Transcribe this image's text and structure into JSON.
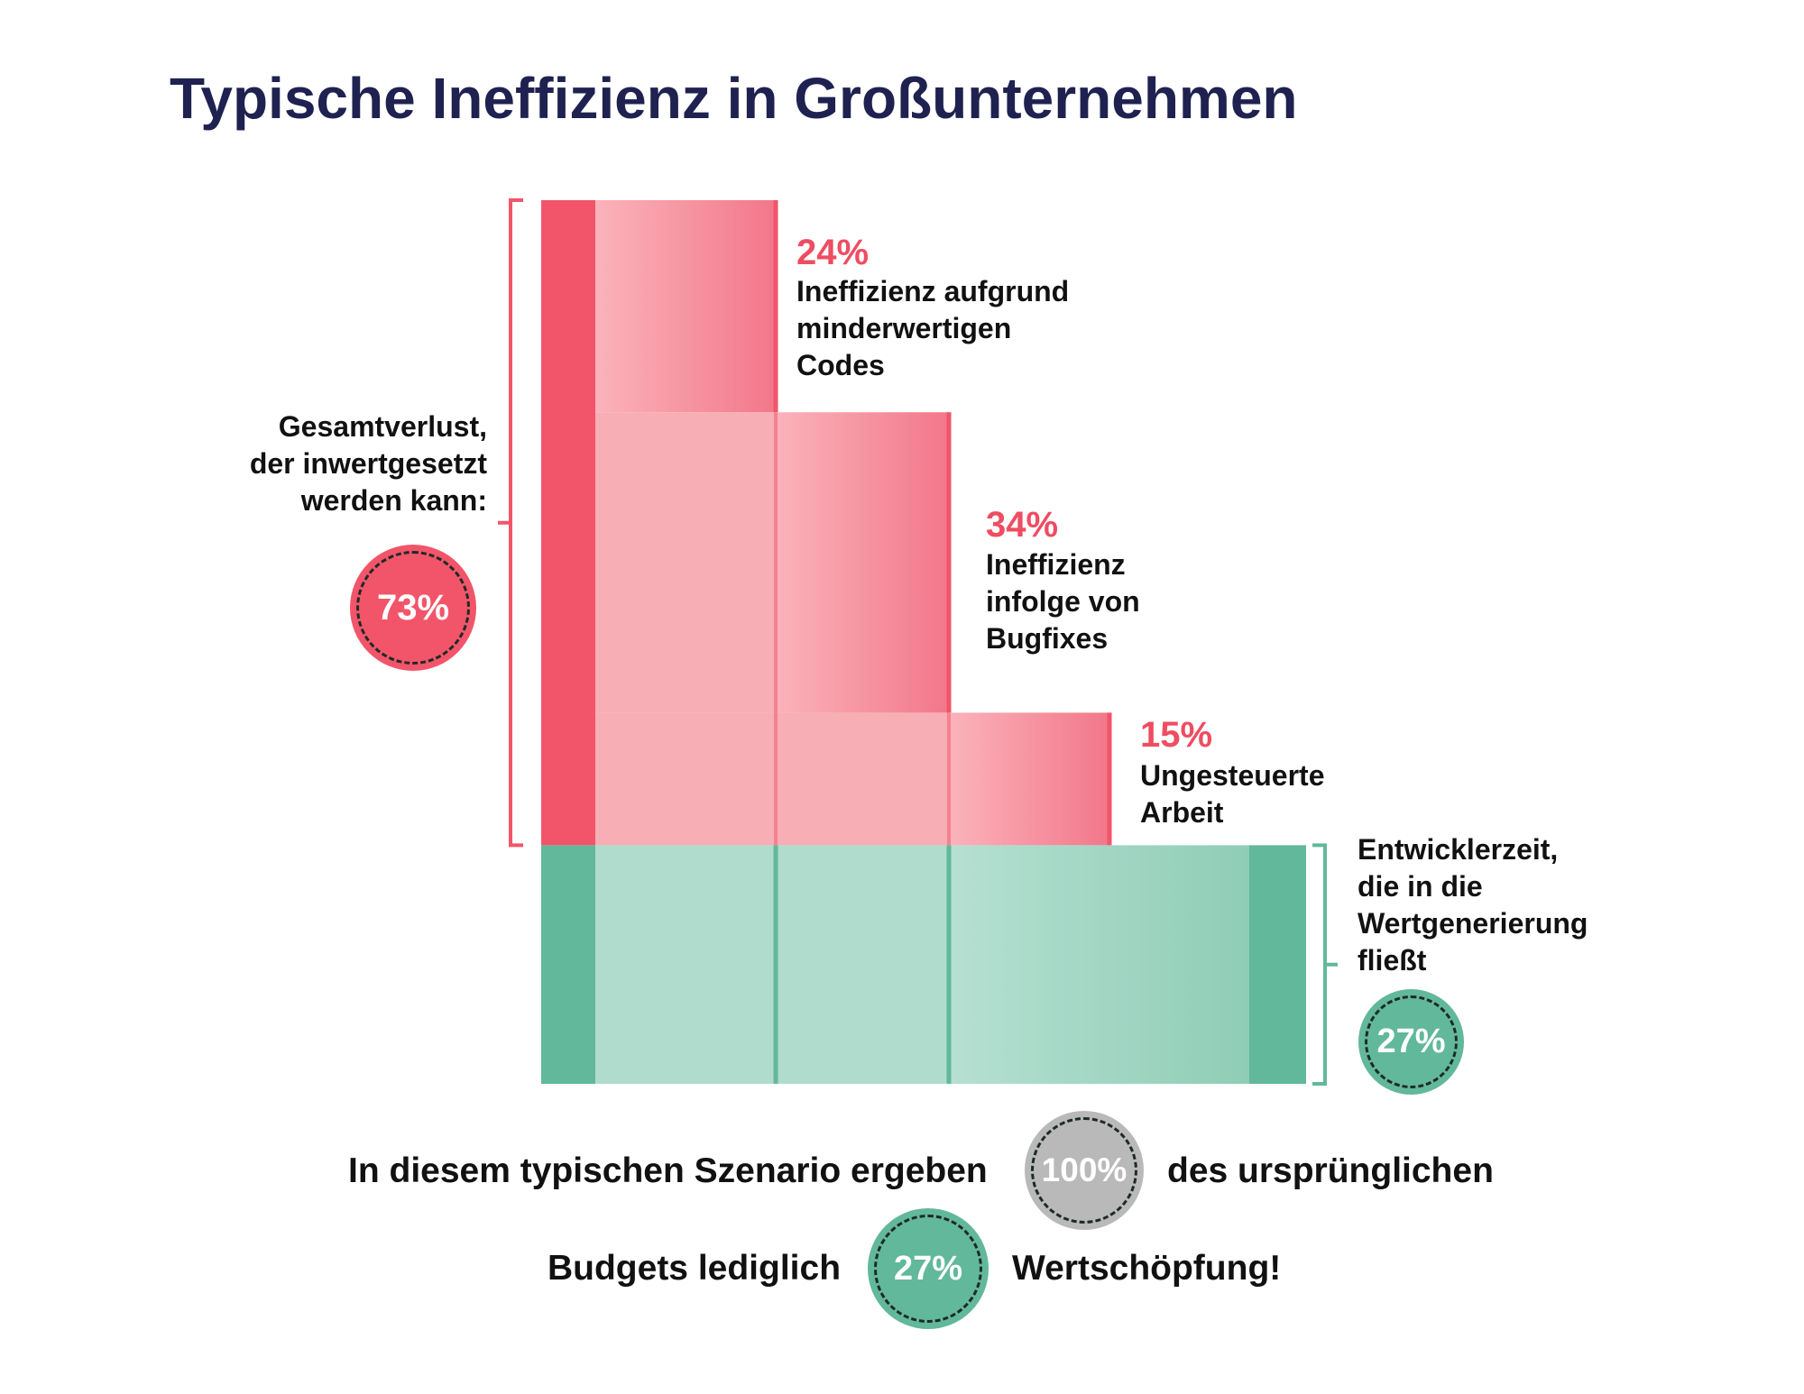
{
  "title": "Typische Ineffizienz in Großunternehmen",
  "colors": {
    "loss_dark": "#f2556a",
    "loss_mid": "#f5818f",
    "loss_light": "#f7aeb5",
    "value_dark": "#62b89b",
    "value_light": "#b0dccd",
    "accent_text": "#ee4d62",
    "neutral_badge": "#b9b9b9"
  },
  "chart_data": {
    "type": "bar",
    "layout": "stacked-waterfall",
    "categories": [
      "Ineffizienz aufgrund minderwertigen Codes",
      "Ineffizienz infolge von Bugfixes",
      "Ungesteuerte Arbeit",
      "Entwicklerzeit, die in die Wertgenerierung fließt"
    ],
    "values": [
      24,
      34,
      15,
      27
    ],
    "unit": "%",
    "total": 100,
    "segments": [
      {
        "id": "code",
        "kind": "loss",
        "value_label": "24%",
        "value": 24,
        "description_lines": [
          "Ineffizienz aufgrund",
          "minderwertigen",
          "Codes"
        ]
      },
      {
        "id": "bugfix",
        "kind": "loss",
        "value_label": "34%",
        "value": 34,
        "description_lines": [
          "Ineffizienz",
          "infolge von",
          "Bugfixes"
        ]
      },
      {
        "id": "unmanaged",
        "kind": "loss",
        "value_label": "15%",
        "value": 15,
        "description_lines": [
          "Ungesteuerte",
          "Arbeit"
        ]
      },
      {
        "id": "value",
        "kind": "value",
        "value_label": "27%",
        "value": 27,
        "description_lines": [
          "Entwicklerzeit,",
          "die in die",
          "Wertgenerierung",
          "fließt"
        ]
      }
    ],
    "total_loss": {
      "value": 73,
      "value_label": "73%",
      "description_lines": [
        "Gesamtverlust,",
        "der inwertgesetzt",
        "werden kann:"
      ]
    },
    "value_badge": {
      "value": 27,
      "value_label": "27%"
    }
  },
  "summary": {
    "line1_before": "In diesem typischen Szenario ergeben",
    "line1_badge": "100%",
    "line1_after": "des ursprünglichen",
    "line2_before": "Budgets lediglich",
    "line2_badge": "27%",
    "line2_after": "Wertschöpfung!"
  }
}
